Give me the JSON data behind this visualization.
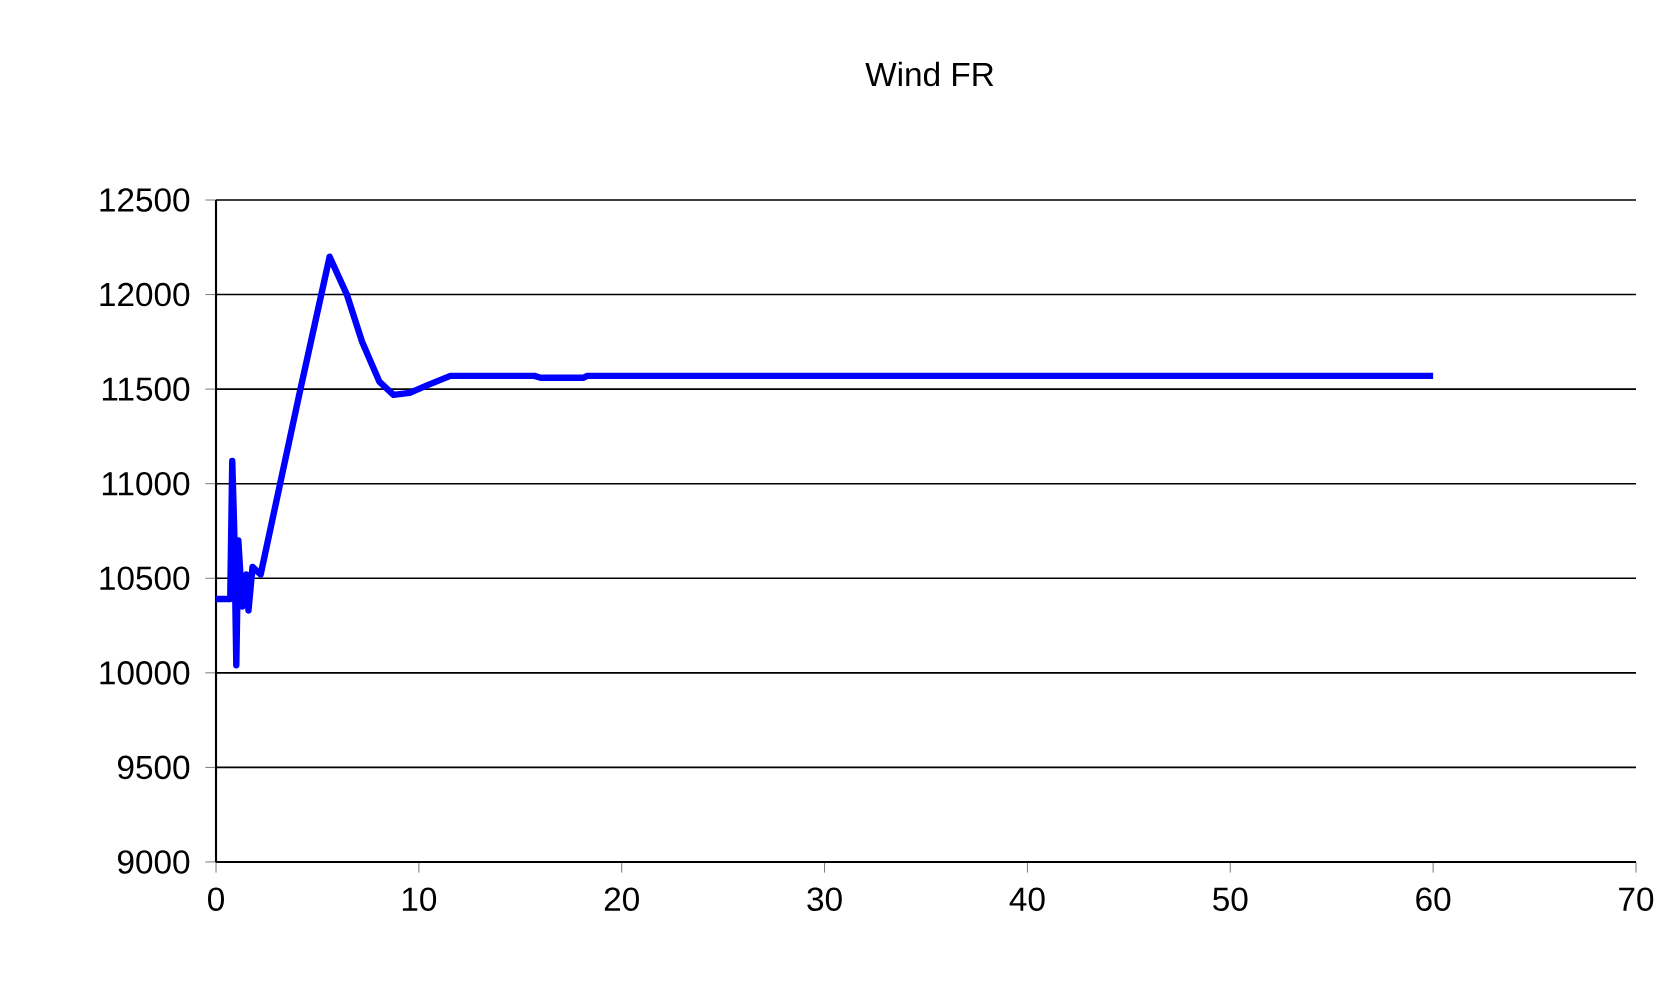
{
  "chart_data": {
    "type": "line",
    "title": "Wind FR",
    "x": [
      0,
      0.7,
      0.8,
      0.9,
      1.0,
      1.1,
      1.3,
      1.5,
      1.6,
      1.8,
      2.2,
      4.1,
      5.6,
      6.45,
      7.2,
      8.05,
      8.75,
      9.55,
      10.4,
      11.55,
      15.7,
      16,
      18.1,
      18.3,
      60
    ],
    "series": [
      {
        "color": "#0000ff",
        "values": [
          10390,
          10390,
          11120,
          10750,
          10040,
          10700,
          10350,
          10520,
          10330,
          10560,
          10520,
          11470,
          12200,
          12000,
          11750,
          11540,
          11470,
          11480,
          11520,
          11570,
          11570,
          11560,
          11560,
          11570,
          11570
        ]
      }
    ],
    "xlim": [
      0,
      70
    ],
    "xticks": [
      0,
      10,
      20,
      30,
      40,
      50,
      60,
      70
    ],
    "ylim": [
      9000,
      12500
    ],
    "yticks": [
      9000,
      9500,
      10000,
      10500,
      11000,
      11500,
      12000,
      12500
    ],
    "grid": "y",
    "marker": "none",
    "line_style": "solid"
  }
}
